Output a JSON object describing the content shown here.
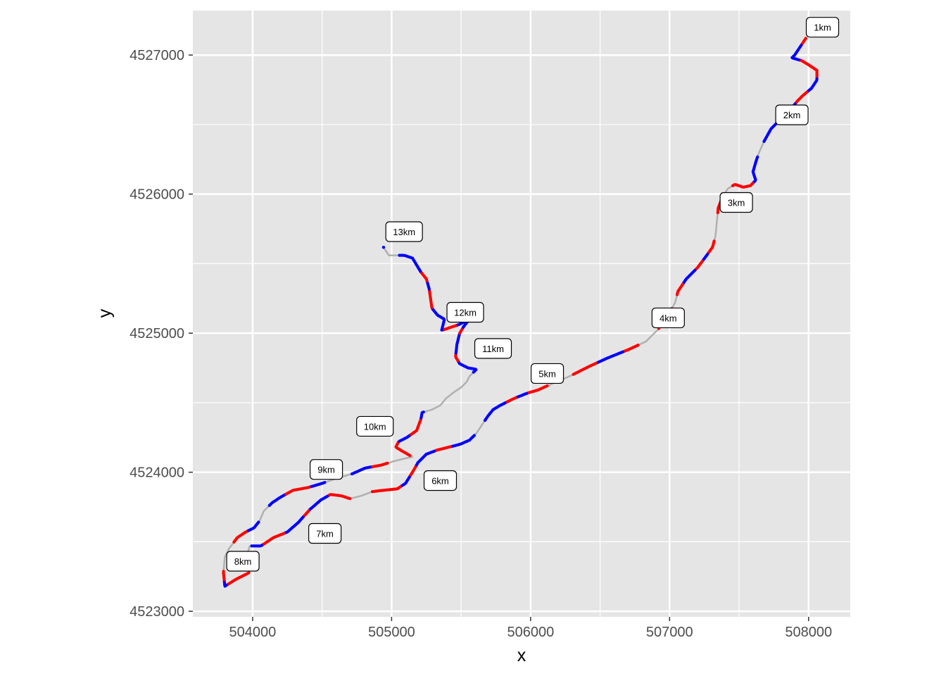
{
  "chart_data": {
    "type": "scatter",
    "title": "",
    "xlabel": "x",
    "ylabel": "y",
    "xlim": [
      503570,
      508300
    ],
    "ylim": [
      4522960,
      4527320
    ],
    "x_ticks": [
      504000,
      505000,
      506000,
      507000,
      508000
    ],
    "y_ticks": [
      4523000,
      4524000,
      4525000,
      4526000,
      4527000
    ],
    "x_tick_labels": [
      "504000",
      "505000",
      "506000",
      "507000",
      "508000"
    ],
    "y_tick_labels": [
      "4523000",
      "4524000",
      "4525000",
      "4526000",
      "4527000"
    ],
    "grid": true,
    "legend": "none",
    "colors": {
      "panel": "#e5e5e5",
      "grid": "#ffffff",
      "route": "#b0b0b0",
      "point_red": "#ff0000",
      "point_blue": "#0000ff"
    },
    "route": [
      [
        507980,
        4527120
      ],
      [
        507900,
        4527000
      ],
      [
        507880,
        4526980
      ],
      [
        507950,
        4526960
      ],
      [
        508000,
        4526930
      ],
      [
        508060,
        4526890
      ],
      [
        508060,
        4526820
      ],
      [
        508020,
        4526760
      ],
      [
        507960,
        4526710
      ],
      [
        507920,
        4526670
      ],
      [
        507880,
        4526620
      ],
      [
        507840,
        4526570
      ],
      [
        507780,
        4526520
      ],
      [
        507730,
        4526470
      ],
      [
        507680,
        4526380
      ],
      [
        507640,
        4526290
      ],
      [
        507620,
        4526230
      ],
      [
        507600,
        4526160
      ],
      [
        507620,
        4526100
      ],
      [
        507580,
        4526060
      ],
      [
        507530,
        4526050
      ],
      [
        507470,
        4526070
      ],
      [
        507420,
        4526040
      ],
      [
        507380,
        4525980
      ],
      [
        507350,
        4525900
      ],
      [
        507340,
        4525800
      ],
      [
        507330,
        4525700
      ],
      [
        507310,
        4525620
      ],
      [
        507260,
        4525550
      ],
      [
        507200,
        4525470
      ],
      [
        507120,
        4525390
      ],
      [
        507060,
        4525300
      ],
      [
        507040,
        4525220
      ],
      [
        506990,
        4525130
      ],
      [
        506920,
        4525030
      ],
      [
        506830,
        4524940
      ],
      [
        506700,
        4524880
      ],
      [
        506550,
        4524820
      ],
      [
        506420,
        4524760
      ],
      [
        506280,
        4524690
      ],
      [
        506140,
        4524630
      ],
      [
        506050,
        4524590
      ],
      [
        505980,
        4524570
      ],
      [
        505880,
        4524530
      ],
      [
        505780,
        4524480
      ],
      [
        505730,
        4524450
      ],
      [
        505690,
        4524400
      ],
      [
        505650,
        4524340
      ],
      [
        505610,
        4524280
      ],
      [
        505560,
        4524230
      ],
      [
        505490,
        4524200
      ],
      [
        505410,
        4524180
      ],
      [
        505330,
        4524160
      ],
      [
        505250,
        4524130
      ],
      [
        505190,
        4524070
      ],
      [
        505150,
        4524000
      ],
      [
        505100,
        4523920
      ],
      [
        505040,
        4523880
      ],
      [
        504940,
        4523870
      ],
      [
        504860,
        4523860
      ],
      [
        504780,
        4523830
      ],
      [
        504700,
        4523810
      ],
      [
        504640,
        4523830
      ],
      [
        504560,
        4523840
      ],
      [
        504490,
        4523800
      ],
      [
        504410,
        4523730
      ],
      [
        504330,
        4523640
      ],
      [
        504250,
        4523570
      ],
      [
        504150,
        4523530
      ],
      [
        504060,
        4523470
      ],
      [
        503980,
        4523470
      ],
      [
        503940,
        4523350
      ],
      [
        503980,
        4523280
      ],
      [
        503880,
        4523230
      ],
      [
        503800,
        4523180
      ],
      [
        503790,
        4523280
      ],
      [
        503800,
        4523390
      ],
      [
        503830,
        4523450
      ],
      [
        503890,
        4523530
      ],
      [
        503950,
        4523570
      ],
      [
        504010,
        4523600
      ],
      [
        504050,
        4523650
      ],
      [
        504080,
        4523720
      ],
      [
        504140,
        4523780
      ],
      [
        504200,
        4523820
      ],
      [
        504290,
        4523870
      ],
      [
        504400,
        4523890
      ],
      [
        504500,
        4523920
      ],
      [
        504620,
        4523960
      ],
      [
        504720,
        4523990
      ],
      [
        504810,
        4524030
      ],
      [
        504920,
        4524050
      ],
      [
        505020,
        4524080
      ],
      [
        505100,
        4524100
      ],
      [
        505150,
        4524110
      ],
      [
        505080,
        4524150
      ],
      [
        505030,
        4524180
      ],
      [
        505050,
        4524220
      ],
      [
        505110,
        4524250
      ],
      [
        505180,
        4524300
      ],
      [
        505210,
        4524380
      ],
      [
        505220,
        4524430
      ],
      [
        505290,
        4524450
      ],
      [
        505350,
        4524480
      ],
      [
        505390,
        4524530
      ],
      [
        505440,
        4524570
      ],
      [
        505500,
        4524610
      ],
      [
        505540,
        4524650
      ],
      [
        505560,
        4524690
      ],
      [
        505610,
        4524740
      ],
      [
        505550,
        4524750
      ],
      [
        505490,
        4524780
      ],
      [
        505460,
        4524830
      ],
      [
        505470,
        4524920
      ],
      [
        505490,
        4525000
      ],
      [
        505520,
        4525050
      ],
      [
        505560,
        4525100
      ],
      [
        505480,
        4525060
      ],
      [
        505420,
        4525040
      ],
      [
        505360,
        4525020
      ],
      [
        505380,
        4525100
      ],
      [
        505330,
        4525130
      ],
      [
        505290,
        4525180
      ],
      [
        505280,
        4525250
      ],
      [
        505270,
        4525320
      ],
      [
        505250,
        4525390
      ],
      [
        505210,
        4525440
      ],
      [
        505180,
        4525490
      ],
      [
        505150,
        4525540
      ],
      [
        505090,
        4525560
      ],
      [
        505030,
        4525560
      ],
      [
        504980,
        4525560
      ],
      [
        504940,
        4525620
      ]
    ],
    "km_markers": [
      {
        "label": "1km",
        "x": 508100,
        "y": 4527200
      },
      {
        "label": "2km",
        "x": 507880,
        "y": 4526570
      },
      {
        "label": "3km",
        "x": 507480,
        "y": 4525940
      },
      {
        "label": "4km",
        "x": 506990,
        "y": 4525110
      },
      {
        "label": "5km",
        "x": 506120,
        "y": 4524710
      },
      {
        "label": "6km",
        "x": 505350,
        "y": 4523940
      },
      {
        "label": "7km",
        "x": 504520,
        "y": 4523560
      },
      {
        "label": "8km",
        "x": 503930,
        "y": 4523360
      },
      {
        "label": "9km",
        "x": 504530,
        "y": 4524020
      },
      {
        "label": "10km",
        "x": 504880,
        "y": 4524330
      },
      {
        "label": "11km",
        "x": 505730,
        "y": 4524890
      },
      {
        "label": "12km",
        "x": 505530,
        "y": 4525150
      },
      {
        "label": "13km",
        "x": 505090,
        "y": 4525730
      }
    ]
  }
}
